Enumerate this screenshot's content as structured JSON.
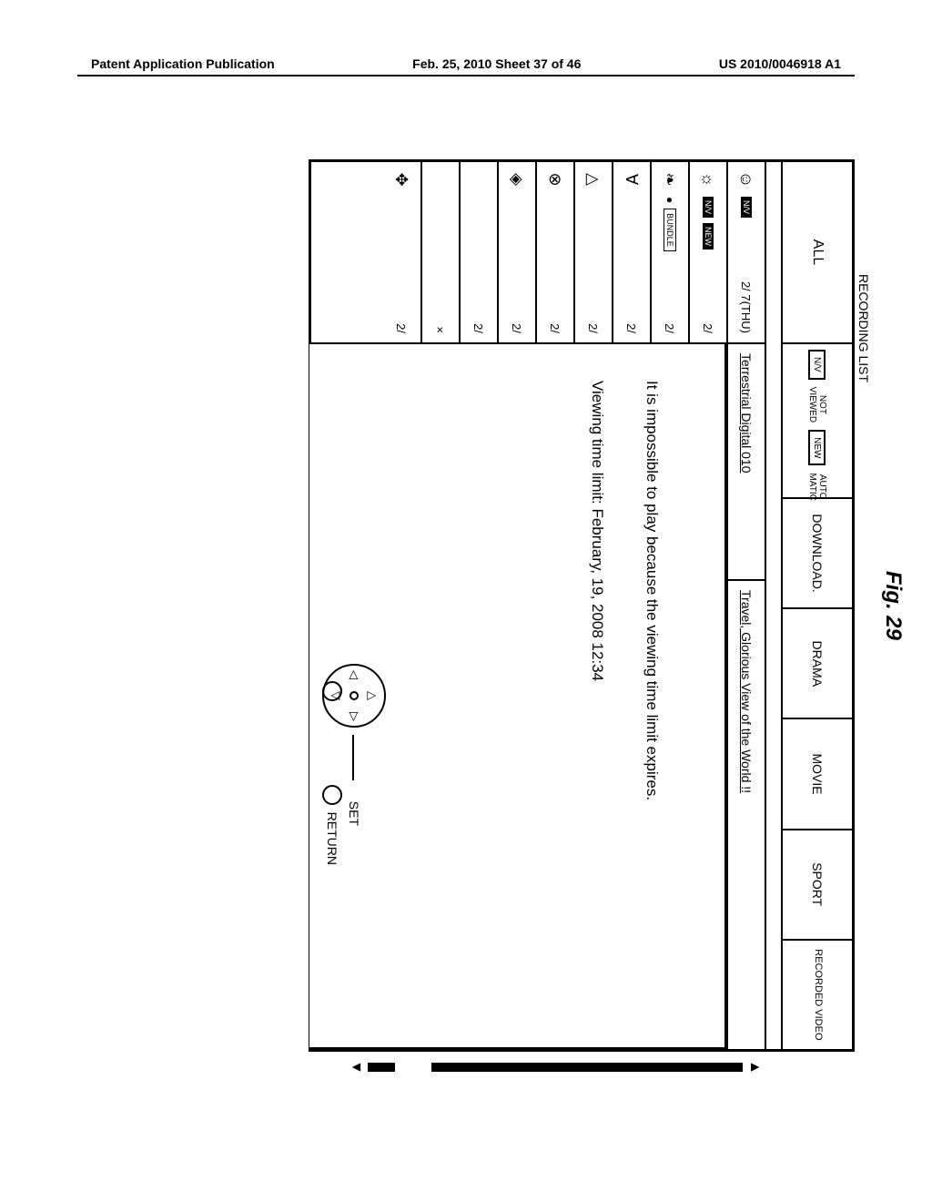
{
  "header": {
    "left": "Patent Application Publication",
    "center": "Feb. 25, 2010  Sheet 37 of 46",
    "right": "US 2010/0046918 A1"
  },
  "figure_label": "Fig. 29",
  "recording_list_label": "RECORDING LIST",
  "tabs": {
    "all": "ALL",
    "mini": {
      "nv": "N/V",
      "not_viewed": "NOT VIEWED",
      "new": "NEW",
      "auto": "AUTO MATIC"
    },
    "download": "DOWNLOAD.",
    "drama": "DRAMA",
    "movie": "MOVIE",
    "sport": "SPORT",
    "recorded": "RECORDED VIDEO"
  },
  "rows": [
    {
      "sym": "☺",
      "badge": "N/V",
      "date": "2/ 7(THU)"
    },
    {
      "sym": "☼",
      "badge": "N/V",
      "badge2": "NEW",
      "date": "2/"
    },
    {
      "sym": "❧",
      "dot": true,
      "badge_outline": "BUNDLE",
      "date": "2/"
    },
    {
      "sym": "∀",
      "date": "2/"
    },
    {
      "sym": "△",
      "date": "2/"
    },
    {
      "sym": "⊗",
      "date": "2/"
    },
    {
      "sym": "◈",
      "date": "2/"
    },
    {
      "sym": "",
      "date": "2/"
    },
    {
      "sym": "",
      "date": "×"
    },
    {
      "sym": "✥",
      "date": "2/"
    }
  ],
  "detail": {
    "channel": "Terrestrial Digital 010",
    "title": "Travel, Glorious View of the World !!"
  },
  "popup": {
    "msg1": "It is impossible to play because the viewing time limit expires.",
    "msg2": "Viewing time limit: February, 19, 2008  12:34",
    "set": "SET",
    "return": "RETURN"
  }
}
